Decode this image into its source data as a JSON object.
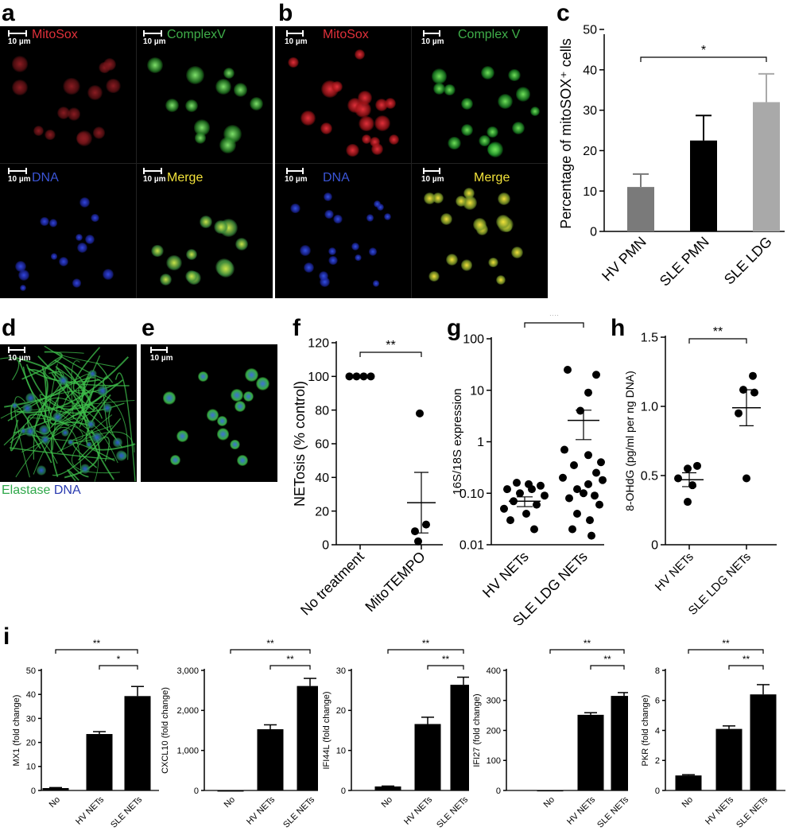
{
  "letters": {
    "a": "a",
    "b": "b",
    "c": "c",
    "d": "d",
    "e": "e",
    "f": "f",
    "g": "g",
    "h": "h",
    "i": "i"
  },
  "micro_a": {
    "mitosox": "MitoSox",
    "complex": "ComplexV",
    "dna": "DNA",
    "merge": "Merge",
    "scale": "10 µm"
  },
  "micro_b": {
    "mitosox": "MitoSox",
    "complex": "Complex V",
    "dna": "DNA",
    "merge": "Merge",
    "scale": "10 µm"
  },
  "micro_d": {
    "scale": "10 µm"
  },
  "micro_e": {
    "scale": "10 µm"
  },
  "caption_de": {
    "elastase": "Elastase",
    "dna": "DNA"
  },
  "colors": {
    "mitosox": "#e0303a",
    "complex": "#3fae49",
    "dna": "#3b55d6",
    "merge": "#f2e23a",
    "bar_dark_gray": "#7a7a7a",
    "bar_black": "#000000",
    "bar_light_gray": "#a9a9a9"
  },
  "chart_data": [
    {
      "id": "c",
      "type": "bar",
      "ylabel": "Percentage of mitoSOX⁺ cells",
      "categories": [
        "HV PMN",
        "SLE PMN",
        "SLE LDG"
      ],
      "values": [
        11,
        22.5,
        32
      ],
      "errors": [
        3.2,
        6.2,
        7
      ],
      "ylim": [
        0,
        50
      ],
      "yticks": [
        0,
        10,
        20,
        30,
        40,
        50
      ],
      "sig": [
        {
          "from": 0,
          "to": 2,
          "label": "*"
        }
      ]
    },
    {
      "id": "f",
      "type": "scatter",
      "ylabel": "NETosis (% control)",
      "categories": [
        "No treatment",
        "MitoTEMPO"
      ],
      "points": [
        [
          100,
          100,
          100,
          100
        ],
        [
          78,
          12,
          8,
          2
        ]
      ],
      "means": [
        100,
        25
      ],
      "sem": [
        0,
        18
      ],
      "ylim": [
        0,
        120
      ],
      "yticks": [
        0,
        20,
        40,
        60,
        80,
        100,
        120
      ],
      "sig": [
        {
          "from": 0,
          "to": 1,
          "label": "**"
        }
      ]
    },
    {
      "id": "g",
      "type": "scatter",
      "scale": "log",
      "ylabel": "16S/18S expression",
      "categories": [
        "HV NETs",
        "SLE LDG NETs"
      ],
      "points": [
        [
          0.16,
          0.15,
          0.14,
          0.12,
          0.12,
          0.1,
          0.09,
          0.07,
          0.06,
          0.05,
          0.04,
          0.03,
          0.02
        ],
        [
          25,
          20,
          9,
          4,
          0.7,
          0.55,
          0.4,
          0.35,
          0.25,
          0.2,
          0.18,
          0.15,
          0.12,
          0.1,
          0.09,
          0.08,
          0.06,
          0.04,
          0.03,
          0.02,
          0.015
        ]
      ],
      "means": [
        0.07,
        2.6
      ],
      "sem_low": [
        0.055,
        1.1
      ],
      "sem_high": [
        0.085,
        4.1
      ],
      "yticks": [
        0.01,
        0.1,
        1,
        10,
        100
      ],
      "ytick_labels": [
        "0.01",
        "0.10",
        "1",
        "10",
        "100"
      ],
      "sig": [
        {
          "from": 0,
          "to": 1,
          "label": "**"
        }
      ]
    },
    {
      "id": "h",
      "type": "scatter",
      "ylabel": "8-OHdG (pg/ml per ng DNA)",
      "categories": [
        "HV NETs",
        "SLE LDG NETs"
      ],
      "points": [
        [
          0.57,
          0.55,
          0.48,
          0.43,
          0.31
        ],
        [
          1.22,
          1.12,
          1.1,
          0.95,
          0.48
        ]
      ],
      "means": [
        0.47,
        0.99
      ],
      "sem": [
        0.05,
        0.13
      ],
      "ylim": [
        0,
        1.5
      ],
      "yticks": [
        0,
        0.5,
        1.0,
        1.5
      ],
      "ytick_labels": [
        "0",
        "0.5",
        "1.0",
        "1.5"
      ],
      "sig": [
        {
          "from": 0,
          "to": 1,
          "label": "**"
        }
      ]
    },
    {
      "id": "i1",
      "type": "bar",
      "ylabel": "MX1 (fold change)",
      "categories": [
        "No",
        "HV NETs",
        "SLE NETs"
      ],
      "values": [
        1,
        23.5,
        39.3
      ],
      "errors": [
        0.2,
        1,
        4
      ],
      "ylim": [
        0,
        50
      ],
      "yticks": [
        0,
        10,
        20,
        30,
        40,
        50
      ],
      "ytick_labels": [
        "0",
        "10",
        "20",
        "30",
        "40",
        "50"
      ],
      "sig": [
        {
          "from": 0,
          "to": 2,
          "label": "**",
          "level": 2
        },
        {
          "from": 1,
          "to": 2,
          "label": "*",
          "level": 1
        }
      ]
    },
    {
      "id": "i2",
      "type": "bar",
      "ylabel": "CXCL10 (fold change)",
      "categories": [
        "No",
        "HV NETs",
        "SLE NETs"
      ],
      "values": [
        2,
        1530,
        2610
      ],
      "errors": [
        0,
        110,
        190
      ],
      "ylim": [
        0,
        3000
      ],
      "yticks": [
        0,
        1000,
        2000,
        3000
      ],
      "ytick_labels": [
        "0",
        "1,000",
        "2,000",
        "3,000"
      ],
      "sig": [
        {
          "from": 0,
          "to": 2,
          "label": "**",
          "level": 2
        },
        {
          "from": 1,
          "to": 2,
          "label": "**",
          "level": 1
        }
      ]
    },
    {
      "id": "i3",
      "type": "bar",
      "ylabel": "IFI44L (fold change)",
      "categories": [
        "No",
        "HV NETs",
        "SLE NETs"
      ],
      "values": [
        1,
        16.6,
        26.4
      ],
      "errors": [
        0.1,
        1.7,
        1.9
      ],
      "ylim": [
        0,
        30
      ],
      "yticks": [
        0,
        10,
        20,
        30
      ],
      "ytick_labels": [
        "0",
        "10",
        "20",
        "30"
      ],
      "sig": [
        {
          "from": 0,
          "to": 2,
          "label": "**",
          "level": 2
        },
        {
          "from": 1,
          "to": 2,
          "label": "**",
          "level": 1
        }
      ]
    },
    {
      "id": "i4",
      "type": "bar",
      "ylabel": "IFI27 (fold change)",
      "categories": [
        "No",
        "HV NETs",
        "SLE NETs"
      ],
      "values": [
        1,
        252,
        315
      ],
      "errors": [
        0,
        7,
        11
      ],
      "ylim": [
        0,
        400
      ],
      "yticks": [
        0,
        100,
        200,
        300,
        400
      ],
      "ytick_labels": [
        "0",
        "100",
        "200",
        "300",
        "400"
      ],
      "sig": [
        {
          "from": 0,
          "to": 2,
          "label": "**",
          "level": 2
        },
        {
          "from": 1,
          "to": 2,
          "label": "**",
          "level": 1
        }
      ]
    },
    {
      "id": "i5",
      "type": "bar",
      "ylabel": "PKR (fold change)",
      "categories": [
        "No",
        "HV NETs",
        "SLE NETs"
      ],
      "values": [
        1,
        4.1,
        6.4
      ],
      "errors": [
        0.05,
        0.2,
        0.65
      ],
      "ylim": [
        0,
        8
      ],
      "yticks": [
        0,
        2,
        4,
        6,
        8
      ],
      "ytick_labels": [
        "0",
        "2",
        "4",
        "6",
        "8"
      ],
      "sig": [
        {
          "from": 0,
          "to": 2,
          "label": "**",
          "level": 2
        },
        {
          "from": 1,
          "to": 2,
          "label": "**",
          "level": 1
        }
      ]
    }
  ]
}
